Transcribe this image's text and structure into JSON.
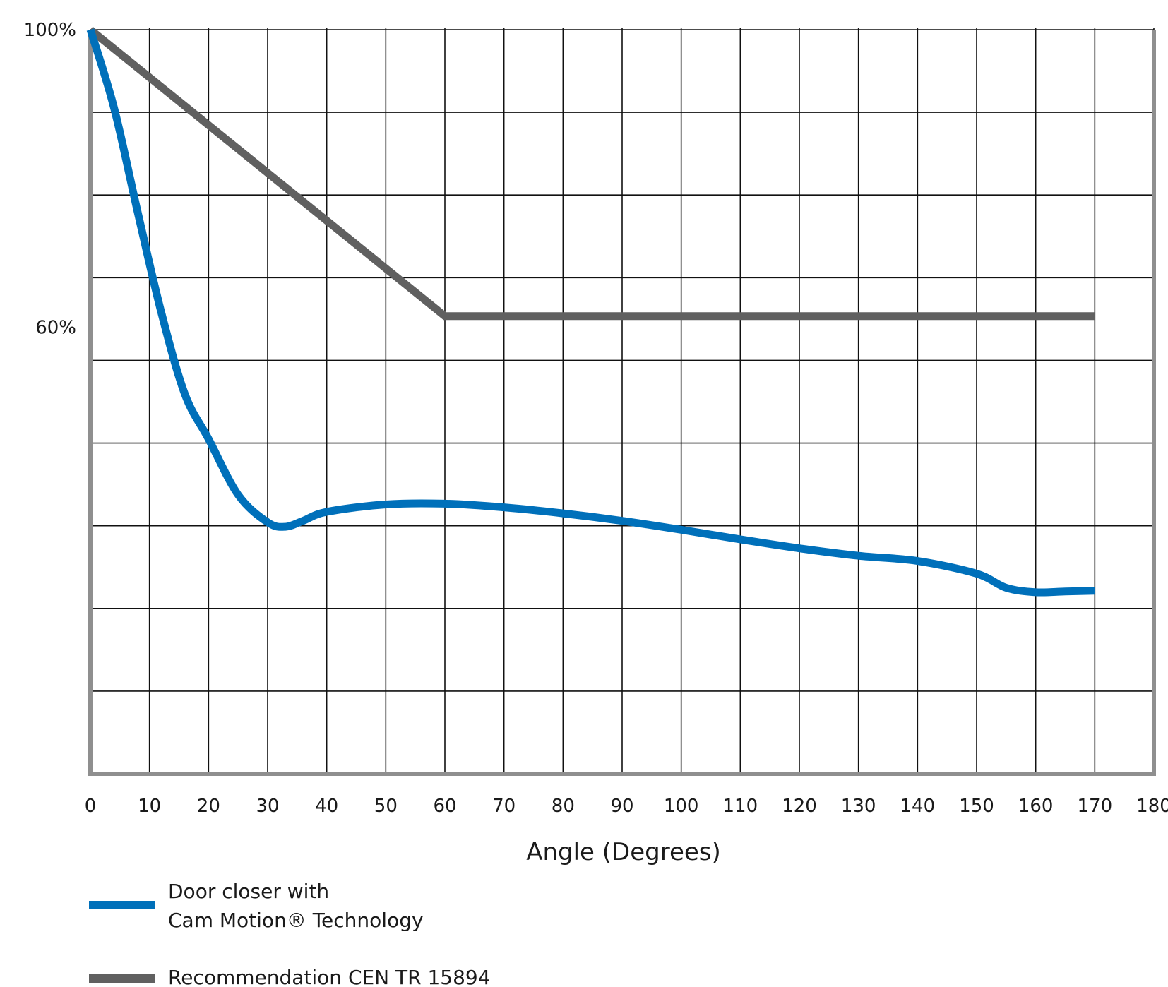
{
  "chart_data": {
    "type": "line",
    "title": "",
    "xlabel": "Angle (Degrees)",
    "ylabel": "",
    "xlim": [
      0,
      180
    ],
    "ylim": [
      0,
      100
    ],
    "x_ticks": [
      "0",
      "10",
      "20",
      "30",
      "40",
      "50",
      "60",
      "70",
      "80",
      "90",
      "100",
      "110",
      "120",
      "130",
      "140",
      "150",
      "160",
      "170",
      "180"
    ],
    "y_tick_labels": [
      {
        "value": 100,
        "label": "100%"
      },
      {
        "value": 60,
        "label": "60%"
      }
    ],
    "y_grid_values": [
      100,
      88.89,
      77.78,
      66.67,
      55.56,
      44.44,
      33.33,
      22.22,
      11.11,
      0
    ],
    "grid": true,
    "legend_position": "bottom-left",
    "series": [
      {
        "name": "Door closer with Cam Motion® Technology",
        "legend_lines": [
          "Door closer with",
          "Cam Motion® Technology"
        ],
        "color": "#0070ba",
        "x": [
          0,
          4,
          8,
          12,
          16,
          20,
          25,
          30,
          33,
          36,
          40,
          50,
          60,
          70,
          80,
          90,
          100,
          110,
          120,
          130,
          140,
          150,
          155,
          160,
          165,
          170
        ],
        "y": [
          100,
          89.5,
          75.5,
          62,
          51,
          45,
          37.5,
          33.8,
          33.2,
          34,
          35.2,
          36.2,
          36.3,
          35.8,
          35,
          34,
          32.8,
          31.5,
          30.3,
          29.3,
          28.6,
          26.9,
          25,
          24.4,
          24.5,
          24.6
        ]
      },
      {
        "name": "Recommendation CEN TR 15894",
        "legend_lines": [
          "Recommendation CEN TR 15894"
        ],
        "color": "#606060",
        "x": [
          0,
          60,
          170
        ],
        "y": [
          100,
          61.5,
          61.5
        ]
      }
    ]
  }
}
